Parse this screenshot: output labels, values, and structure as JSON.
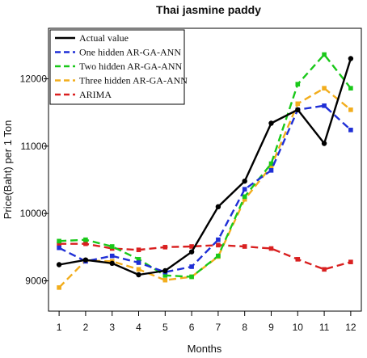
{
  "chart_data": {
    "type": "line",
    "title": "Thai jasmine paddy",
    "xlabel": "Months",
    "ylabel": "Price(Baht) per 1 Ton",
    "x": [
      1,
      2,
      3,
      4,
      5,
      6,
      7,
      8,
      9,
      10,
      11,
      12
    ],
    "x_tick_labels": [
      "1",
      "2",
      "3",
      "4",
      "5",
      "6",
      "7",
      "8",
      "9",
      "10",
      "11",
      "12"
    ],
    "y_ticks": [
      9000,
      10000,
      11000,
      12000
    ],
    "y_tick_labels": [
      "9000",
      "10000",
      "11000",
      "12000"
    ],
    "xlim": [
      0.6,
      12.4
    ],
    "ylim": [
      8550,
      12750
    ],
    "grid": false,
    "legend_position": "top-left",
    "series": [
      {
        "name": "Actual value",
        "color": "#000000",
        "dash": "solid",
        "marker": "circle",
        "values": [
          9240,
          9310,
          9260,
          9090,
          9150,
          9430,
          10100,
          10480,
          11340,
          11540,
          11040,
          12300
        ]
      },
      {
        "name": "One hidden AR-GA-ANN",
        "color": "#1f2fd6",
        "dash": "dashed",
        "marker": "square",
        "values": [
          9490,
          9290,
          9370,
          9270,
          9130,
          9210,
          9610,
          10360,
          10640,
          11540,
          11600,
          11240
        ]
      },
      {
        "name": "Two hidden AR-GA-ANN",
        "color": "#19c819",
        "dash": "dashed",
        "marker": "square",
        "values": [
          9590,
          9610,
          9510,
          9320,
          9080,
          9060,
          9370,
          10250,
          10740,
          11920,
          12360,
          11860
        ]
      },
      {
        "name": "Three hidden AR-GA-ANN",
        "color": "#f2ad1c",
        "dash": "dashed",
        "marker": "square",
        "values": [
          8900,
          9300,
          9290,
          9170,
          9010,
          9060,
          9360,
          10210,
          10700,
          11630,
          11860,
          11540
        ]
      },
      {
        "name": "ARIMA",
        "color": "#d92020",
        "dash": "dashed",
        "marker": "square",
        "values": [
          9550,
          9550,
          9480,
          9460,
          9500,
          9510,
          9530,
          9510,
          9480,
          9320,
          9170,
          9280
        ]
      }
    ]
  }
}
